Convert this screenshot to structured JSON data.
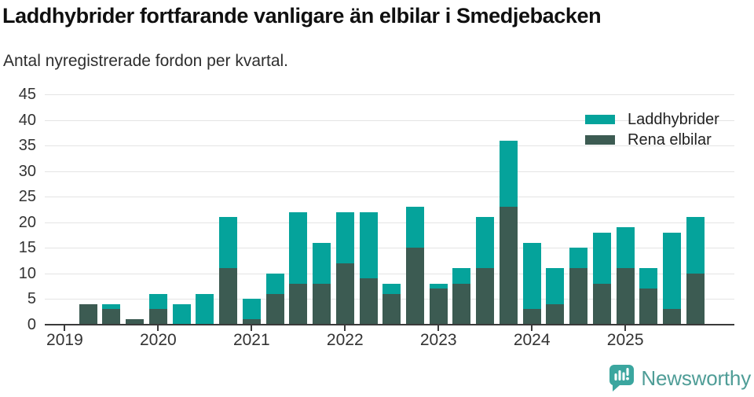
{
  "header": {
    "title": "Laddhybrider fortfarande vanligare än elbilar i Smedjebacken",
    "subtitle": "Antal nyregistrerade fordon per kvartal."
  },
  "chart_data": {
    "type": "bar",
    "stacked": true,
    "title": "Laddhybrider fortfarande vanligare än elbilar i Smedjebacken",
    "subtitle": "Antal nyregistrerade fordon per kvartal.",
    "x": [
      "2019 Q1",
      "2019 Q2",
      "2019 Q3",
      "2019 Q4",
      "2020 Q1",
      "2020 Q2",
      "2020 Q3",
      "2020 Q4",
      "2021 Q1",
      "2021 Q2",
      "2021 Q3",
      "2021 Q4",
      "2022 Q1",
      "2022 Q2",
      "2022 Q3",
      "2022 Q4",
      "2023 Q1",
      "2023 Q2",
      "2023 Q3",
      "2023 Q4",
      "2024 Q1",
      "2024 Q2",
      "2024 Q3",
      "2024 Q4",
      "2025 Q1",
      "2025 Q2",
      "2025 Q3",
      "2025 Q4"
    ],
    "series": [
      {
        "name": "Laddhybrider",
        "color": "#05a39b",
        "stack_position": "top",
        "values": [
          0,
          0,
          1,
          0,
          3,
          4,
          6,
          10,
          4,
          4,
          14,
          8,
          10,
          13,
          2,
          8,
          1,
          3,
          10,
          13,
          13,
          7,
          4,
          10,
          8,
          4,
          15,
          11
        ]
      },
      {
        "name": "Rena elbilar",
        "color": "#3c5b52",
        "stack_position": "bottom",
        "values": [
          0,
          4,
          3,
          1,
          3,
          0,
          0,
          11,
          1,
          6,
          8,
          8,
          12,
          9,
          6,
          15,
          7,
          8,
          11,
          23,
          3,
          4,
          11,
          8,
          11,
          7,
          3,
          10
        ]
      }
    ],
    "totals": [
      0,
      4,
      4,
      1,
      6,
      4,
      6,
      21,
      5,
      10,
      22,
      16,
      22,
      22,
      8,
      23,
      8,
      11,
      21,
      36,
      16,
      11,
      15,
      18,
      19,
      11,
      18,
      21
    ],
    "ylim": [
      0,
      45
    ],
    "yticks": [
      0,
      5,
      10,
      15,
      20,
      25,
      30,
      35,
      40,
      45
    ],
    "x_year_labels": [
      "2019",
      "2020",
      "2021",
      "2022",
      "2023",
      "2024",
      "2025"
    ],
    "grid": true,
    "legend_position": "top-right"
  },
  "legend": {
    "items": [
      {
        "label": "Laddhybrider",
        "color": "#05a39b"
      },
      {
        "label": "Rena elbilar",
        "color": "#3c5b52"
      }
    ]
  },
  "footer": {
    "brand": "Newsworthy"
  },
  "colors": {
    "laddhybrider": "#05a39b",
    "rena_elbilar": "#3c5b52",
    "gridline": "#e4e4e4",
    "axis": "#3a3a3a",
    "text": "#333333",
    "logo_icon": "#3ba69f",
    "logo_text": "#4f9d97"
  }
}
